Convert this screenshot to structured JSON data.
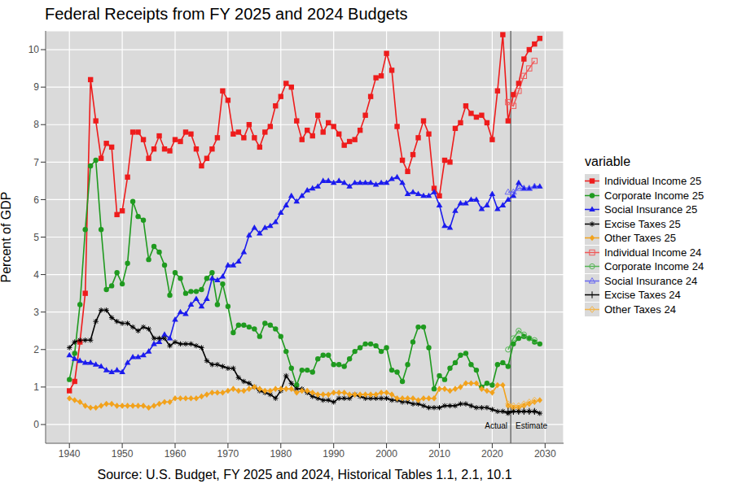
{
  "chart_data": {
    "type": "line",
    "title": "Federal Receipts from FY 2025 and 2024 Budgets",
    "xlabel": "Source: U.S. Budget, FY 2025 and 2024, Historical Tables 1.1, 2.1, 10.1",
    "ylabel": "Percent of GDP",
    "legend_title": "variable",
    "legend": "right",
    "grid": true,
    "xlim": [
      1935.5,
      2033.5
    ],
    "ylim": [
      -0.5,
      10.5
    ],
    "xticks": [
      1940,
      1950,
      1960,
      1970,
      1980,
      1990,
      2000,
      2010,
      2020,
      2030
    ],
    "yticks": [
      0,
      1,
      2,
      3,
      4,
      5,
      6,
      7,
      8,
      9,
      10
    ],
    "vline": 2023.5,
    "annotations": [
      "Actual",
      "Estimate"
    ],
    "x": [
      1940,
      1941,
      1942,
      1943,
      1944,
      1945,
      1946,
      1947,
      1948,
      1949,
      1950,
      1951,
      1952,
      1953,
      1954,
      1955,
      1956,
      1957,
      1958,
      1959,
      1960,
      1961,
      1962,
      1963,
      1964,
      1965,
      1966,
      1967,
      1968,
      1969,
      1970,
      1971,
      1972,
      1973,
      1974,
      1975,
      1976,
      1977,
      1978,
      1979,
      1980,
      1981,
      1982,
      1983,
      1984,
      1985,
      1986,
      1987,
      1988,
      1989,
      1990,
      1991,
      1992,
      1993,
      1994,
      1995,
      1996,
      1997,
      1998,
      1999,
      2000,
      2001,
      2002,
      2003,
      2004,
      2005,
      2006,
      2007,
      2008,
      2009,
      2010,
      2011,
      2012,
      2013,
      2014,
      2015,
      2016,
      2017,
      2018,
      2019,
      2020,
      2021,
      2022,
      2023,
      2024,
      2025,
      2026,
      2027,
      2028,
      2029
    ],
    "series": [
      {
        "name": "Individual Income 25",
        "color": "#ee1c1c",
        "marker": "square",
        "values": [
          0.9,
          1.15,
          2.2,
          3.5,
          9.2,
          8.1,
          7.1,
          7.5,
          7.4,
          5.6,
          5.7,
          6.6,
          7.8,
          7.8,
          7.6,
          7.1,
          7.35,
          7.7,
          7.35,
          7.3,
          7.6,
          7.55,
          7.8,
          7.75,
          7.35,
          6.9,
          7.1,
          7.35,
          7.65,
          8.9,
          8.65,
          7.75,
          7.8,
          7.65,
          8.0,
          7.65,
          7.4,
          7.8,
          7.95,
          8.5,
          8.75,
          9.1,
          9.0,
          8.1,
          7.6,
          7.85,
          7.7,
          8.25,
          7.8,
          8.05,
          7.95,
          7.75,
          7.45,
          7.55,
          7.6,
          7.85,
          8.25,
          8.75,
          9.25,
          9.3,
          9.9,
          9.45,
          7.95,
          7.05,
          6.75,
          7.2,
          7.65,
          8.1,
          7.75,
          6.3,
          6.1,
          7.05,
          7.0,
          7.9,
          8.05,
          8.5,
          8.3,
          8.2,
          8.25,
          8.05,
          7.6,
          8.9,
          10.4,
          8.1,
          8.8,
          9.1,
          9.75,
          10.0,
          10.15,
          10.3
        ]
      },
      {
        "name": "Corporate Income 25",
        "color": "#1f9a1f",
        "marker": "circle",
        "values": [
          1.2,
          1.9,
          3.2,
          5.2,
          6.9,
          7.05,
          5.2,
          3.6,
          3.7,
          4.05,
          3.75,
          4.3,
          5.95,
          5.55,
          5.45,
          4.4,
          4.75,
          4.6,
          4.25,
          3.45,
          4.05,
          3.9,
          3.5,
          3.55,
          3.55,
          3.6,
          3.9,
          4.05,
          3.2,
          3.75,
          3.15,
          2.45,
          2.65,
          2.65,
          2.6,
          2.55,
          2.35,
          2.7,
          2.65,
          2.55,
          2.35,
          1.95,
          1.5,
          1.05,
          1.45,
          1.45,
          1.4,
          1.75,
          1.85,
          1.85,
          1.6,
          1.6,
          1.55,
          1.75,
          1.95,
          2.05,
          2.15,
          2.15,
          2.1,
          1.95,
          2.05,
          1.45,
          1.4,
          1.15,
          1.6,
          2.2,
          2.6,
          2.6,
          2.05,
          0.95,
          1.3,
          1.2,
          1.5,
          1.65,
          1.85,
          1.9,
          1.6,
          1.45,
          1.0,
          1.1,
          1.05,
          1.6,
          1.65,
          1.55,
          2.15,
          2.3,
          2.35,
          2.3,
          2.2,
          2.15
        ]
      },
      {
        "name": "Social Insurance 25",
        "color": "#1c1cee",
        "marker": "triangle",
        "values": [
          1.85,
          1.75,
          1.7,
          1.65,
          1.65,
          1.6,
          1.55,
          1.45,
          1.4,
          1.45,
          1.4,
          1.65,
          1.8,
          1.8,
          1.85,
          1.95,
          2.15,
          2.2,
          2.4,
          2.3,
          2.8,
          3.0,
          2.95,
          3.2,
          3.35,
          3.15,
          3.35,
          3.9,
          3.85,
          3.95,
          4.25,
          4.25,
          4.35,
          4.6,
          5.05,
          5.25,
          5.1,
          5.25,
          5.3,
          5.4,
          5.65,
          5.85,
          6.1,
          5.95,
          6.1,
          6.25,
          6.3,
          6.35,
          6.5,
          6.5,
          6.45,
          6.5,
          6.45,
          6.35,
          6.45,
          6.45,
          6.45,
          6.45,
          6.4,
          6.45,
          6.45,
          6.55,
          6.6,
          6.45,
          6.15,
          6.2,
          6.15,
          6.1,
          6.1,
          6.2,
          5.85,
          5.3,
          5.25,
          5.7,
          5.9,
          5.9,
          6.0,
          6.0,
          5.75,
          5.85,
          6.15,
          5.75,
          5.85,
          6.0,
          6.1,
          6.45,
          6.3,
          6.3,
          6.35,
          6.35
        ]
      },
      {
        "name": "Excise Taxes 25",
        "color": "#000000",
        "marker": "asterisk",
        "values": [
          2.05,
          2.2,
          2.25,
          2.25,
          2.25,
          2.75,
          3.05,
          3.05,
          2.85,
          2.75,
          2.7,
          2.7,
          2.6,
          2.5,
          2.6,
          2.55,
          2.3,
          2.3,
          2.3,
          2.1,
          2.2,
          2.15,
          2.15,
          2.15,
          2.1,
          2.05,
          1.7,
          1.6,
          1.6,
          1.55,
          1.5,
          1.5,
          1.25,
          1.15,
          1.1,
          1.0,
          0.9,
          0.85,
          0.8,
          0.7,
          0.9,
          1.3,
          1.1,
          0.95,
          0.95,
          0.85,
          0.75,
          0.7,
          0.65,
          0.65,
          0.6,
          0.7,
          0.7,
          0.7,
          0.8,
          0.75,
          0.7,
          0.7,
          0.7,
          0.7,
          0.7,
          0.65,
          0.65,
          0.6,
          0.6,
          0.55,
          0.55,
          0.5,
          0.45,
          0.45,
          0.45,
          0.5,
          0.5,
          0.5,
          0.55,
          0.55,
          0.5,
          0.45,
          0.45,
          0.45,
          0.4,
          0.35,
          0.35,
          0.3,
          0.35,
          0.35,
          0.35,
          0.35,
          0.35,
          0.3
        ]
      },
      {
        "name": "Other Taxes 25",
        "color": "#f2a21c",
        "marker": "diamond",
        "values": [
          0.7,
          0.65,
          0.6,
          0.5,
          0.45,
          0.45,
          0.5,
          0.55,
          0.55,
          0.5,
          0.5,
          0.5,
          0.5,
          0.5,
          0.5,
          0.45,
          0.5,
          0.55,
          0.6,
          0.6,
          0.7,
          0.7,
          0.7,
          0.7,
          0.7,
          0.75,
          0.8,
          0.85,
          0.85,
          0.85,
          0.9,
          0.95,
          0.9,
          0.9,
          0.95,
          1.0,
          0.95,
          0.9,
          0.9,
          0.95,
          0.95,
          0.95,
          0.95,
          0.85,
          0.9,
          0.9,
          0.85,
          0.8,
          0.8,
          0.8,
          0.85,
          0.85,
          0.85,
          0.8,
          0.8,
          0.8,
          0.8,
          0.8,
          0.8,
          0.85,
          0.85,
          0.8,
          0.7,
          0.7,
          0.7,
          0.7,
          0.65,
          0.7,
          0.7,
          0.7,
          0.95,
          0.95,
          0.9,
          0.95,
          1.0,
          1.1,
          1.1,
          1.1,
          0.95,
          0.9,
          0.85,
          1.05,
          1.05,
          0.5,
          0.45,
          0.45,
          0.5,
          0.55,
          0.6,
          0.65
        ]
      },
      {
        "name": "Individual Income 24",
        "color": "#f05a5a",
        "marker": "open_square",
        "x": [
          2023,
          2024,
          2025,
          2026,
          2027,
          2028
        ],
        "values": [
          8.6,
          8.5,
          8.9,
          9.3,
          9.5,
          9.7
        ]
      },
      {
        "name": "Corporate Income 24",
        "color": "#55b555",
        "marker": "open_circle",
        "x": [
          2023,
          2024,
          2025,
          2026,
          2027,
          2028
        ],
        "values": [
          2.0,
          2.3,
          2.5,
          2.4,
          2.3,
          2.25
        ]
      },
      {
        "name": "Social Insurance 24",
        "color": "#6a6af2",
        "marker": "open_triangle",
        "x": [
          2023,
          2024,
          2025,
          2026,
          2027,
          2028
        ],
        "values": [
          6.2,
          6.2,
          6.3,
          6.3,
          6.3,
          6.35
        ]
      },
      {
        "name": "Excise Taxes 24",
        "color": "#000000",
        "marker": "plus",
        "x": [
          2023,
          2024,
          2025,
          2026,
          2027,
          2028
        ],
        "values": [
          0.35,
          0.35,
          0.35,
          0.35,
          0.35,
          0.35
        ]
      },
      {
        "name": "Other Taxes 24",
        "color": "#f5b64a",
        "marker": "open_diamond",
        "x": [
          2023,
          2024,
          2025,
          2026,
          2027,
          2028
        ],
        "values": [
          0.55,
          0.5,
          0.5,
          0.55,
          0.6,
          0.65
        ]
      }
    ]
  }
}
